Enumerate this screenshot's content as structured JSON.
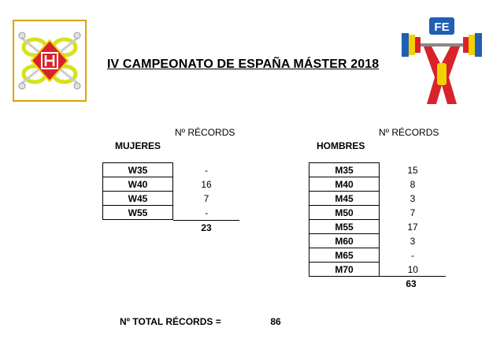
{
  "header": {
    "title": "IV CAMPEONATO DE ESPAÑA MÁSTER 2018",
    "right_logo_text": "FE"
  },
  "women": {
    "section_title": "MUJERES",
    "column_header": "Nº RÉCORDS",
    "rows": [
      {
        "category": "W35",
        "records": "-"
      },
      {
        "category": "W40",
        "records": "16"
      },
      {
        "category": "W45",
        "records": "7"
      },
      {
        "category": "W55",
        "records": "-"
      }
    ],
    "subtotal": "23"
  },
  "men": {
    "section_title": "HOMBRES",
    "column_header": "Nº RÉCORDS",
    "rows": [
      {
        "category": "M35",
        "records": "15"
      },
      {
        "category": "M40",
        "records": "8"
      },
      {
        "category": "M45",
        "records": "3"
      },
      {
        "category": "M50",
        "records": "7"
      },
      {
        "category": "M55",
        "records": "17"
      },
      {
        "category": "M60",
        "records": "3"
      },
      {
        "category": "M65",
        "records": "-"
      },
      {
        "category": "M70",
        "records": "10"
      }
    ],
    "subtotal": "63"
  },
  "summary": {
    "label": "Nº TOTAL RÉCORDS =",
    "value": "86"
  },
  "colors": {
    "logo_border": "#d9a400",
    "logo_red": "#d8232a",
    "logo_yellow": "#f2d100",
    "logo_blue": "#1f5fb4",
    "logo_lime": "#d6e21a"
  }
}
